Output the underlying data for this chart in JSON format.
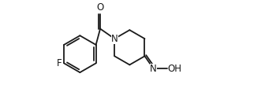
{
  "bg_color": "#ffffff",
  "line_color": "#1a1a1a",
  "atom_label_color": "#1a1a1a",
  "line_width": 1.3,
  "font_size": 8.5,
  "figsize": [
    3.36,
    1.36
  ],
  "dpi": 100,
  "xlim": [
    0.0,
    8.2
  ],
  "ylim": [
    -2.2,
    1.8
  ]
}
